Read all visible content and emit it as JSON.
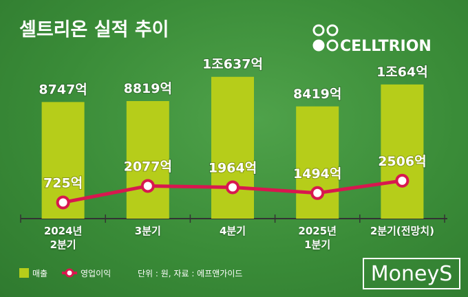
{
  "chart_data": {
    "type": "bar_line",
    "title": "셀트리온 실적 추이",
    "logo": "CELLTRION",
    "note": "단위 : 원, 자료 : 에프앤가이드",
    "source_mark": "MoneyS",
    "categories": [
      "2024년\n2분기",
      "3분기",
      "4분기",
      "2025년\n1분기",
      "2분기(전망치)"
    ],
    "series": [
      {
        "name": "매출",
        "color": "#b6cd1a",
        "values": [
          8747,
          8819,
          10637,
          8419,
          10064
        ],
        "value_labels": [
          "8747억",
          "8819억",
          "1조637억",
          "8419억",
          "1조64억"
        ]
      },
      {
        "name": "영업이익",
        "color": "#d8174f",
        "axis": "y2",
        "values": [
          725,
          2077,
          1964,
          1494,
          2506
        ],
        "value_labels": [
          "725억",
          "2077억",
          "1964억",
          "1494억",
          "2506억"
        ]
      }
    ],
    "ylim": [
      0,
      16400
    ],
    "y2lim": [
      -600,
      17300
    ]
  }
}
